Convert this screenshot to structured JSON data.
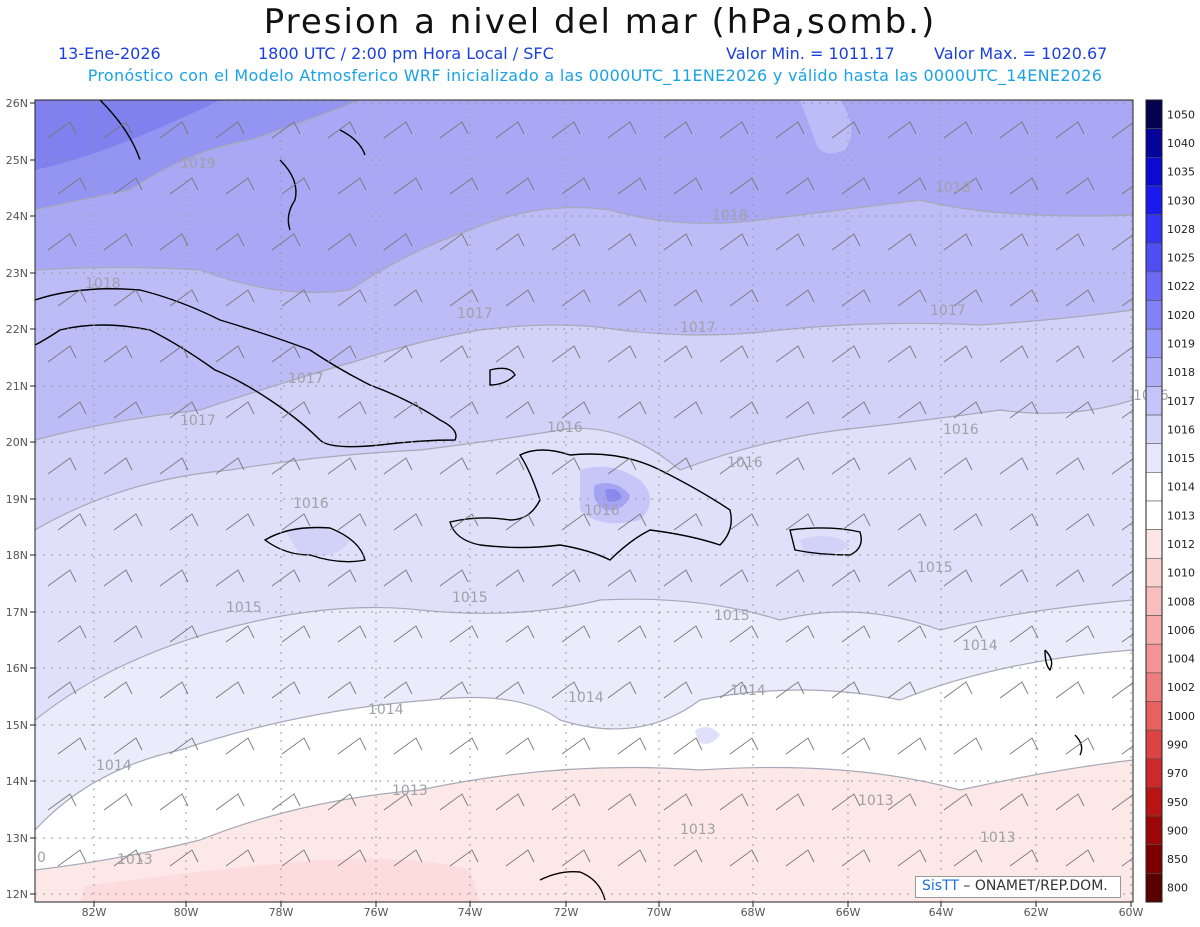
{
  "header": {
    "title": "Presion a nivel del mar (hPa,somb.)",
    "date": "13-Ene-2026",
    "time": "1800 UTC / 2:00 pm Hora Local / SFC",
    "min_label": "Valor Min. = 1011.17",
    "max_label": "Valor Max. = 1020.67",
    "run_info": "Pronóstico con el Modelo Atmosferico WRF inicializado a las 0000UTC_11ENE2026 y válido hasta las  0000UTC_14ENE2026"
  },
  "axes": {
    "lat_labels": [
      "26N",
      "25N",
      "24N",
      "23N",
      "22N",
      "21N",
      "20N",
      "19N",
      "18N",
      "17N",
      "16N",
      "15N",
      "14N",
      "13N",
      "12N"
    ],
    "lon_labels": [
      "82W",
      "80W",
      "78W",
      "76W",
      "74W",
      "72W",
      "70W",
      "68W",
      "66W",
      "64W",
      "62W",
      "60W"
    ]
  },
  "contour_labels": [
    {
      "text": "1019"
    },
    {
      "text": "1018"
    },
    {
      "text": "1018"
    },
    {
      "text": "1018"
    },
    {
      "text": "1017"
    },
    {
      "text": "1017"
    },
    {
      "text": "1017"
    },
    {
      "text": "1017"
    },
    {
      "text": "1017"
    },
    {
      "text": "1016"
    },
    {
      "text": "1016"
    },
    {
      "text": "1016"
    },
    {
      "text": "1016"
    },
    {
      "text": "1016"
    },
    {
      "text": "1016"
    },
    {
      "text": "1015"
    },
    {
      "text": "1015"
    },
    {
      "text": "1015"
    },
    {
      "text": "1015"
    },
    {
      "text": "1014"
    },
    {
      "text": "1014"
    },
    {
      "text": "1014"
    },
    {
      "text": "1014"
    },
    {
      "text": "1014"
    },
    {
      "text": "1013"
    },
    {
      "text": "1013"
    },
    {
      "text": "1013"
    },
    {
      "text": "1013"
    },
    {
      "text": "1013"
    },
    {
      "text": "0"
    }
  ],
  "colorbar": {
    "levels": [
      "1050",
      "1040",
      "1035",
      "1030",
      "1028",
      "1025",
      "1022",
      "1020",
      "1019",
      "1018",
      "1017",
      "1016",
      "1015",
      "1014",
      "1013",
      "1012",
      "1010",
      "1008",
      "1006",
      "1004",
      "1002",
      "1000",
      "990",
      "970",
      "950",
      "900",
      "850",
      "800"
    ],
    "colors": [
      "#02024e",
      "#04049a",
      "#0a0ad0",
      "#1a1aee",
      "#3434f4",
      "#4e4ef4",
      "#6a6af6",
      "#8282f6",
      "#9a9af8",
      "#b0b0f8",
      "#c4c4fa",
      "#d6d6fa",
      "#e6e6fc",
      "#ffffff",
      "#ffffff",
      "#fde6e6",
      "#fbd2d2",
      "#f8bebe",
      "#f6aaaa",
      "#f29494",
      "#ee7e7e",
      "#e86060",
      "#dc4444",
      "#cc2a2a",
      "#b81414",
      "#9c0606",
      "#7c0000",
      "#5a0000"
    ]
  },
  "credit": {
    "brand": "SisTT",
    "text": "– ONAMET/REP.DOM."
  }
}
